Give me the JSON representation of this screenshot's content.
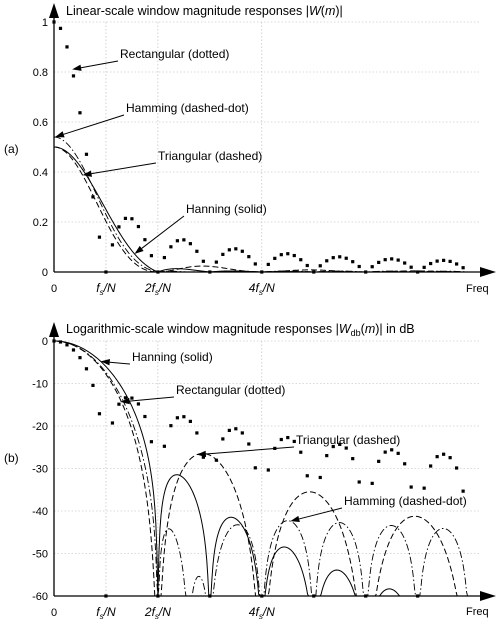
{
  "chart_data": [
    {
      "id": "a",
      "panel_label": "(a)",
      "type": "line",
      "title": "Linear-scale window magnitude responses |W(m)|",
      "xlabel": "Freq",
      "x_ticks": [
        "0",
        "f_s/N",
        "2f_s/N",
        "4f_s/N"
      ],
      "x_tick_values": [
        0,
        1,
        2,
        4
      ],
      "xlim": [
        0,
        8.2
      ],
      "ylim": [
        0,
        1
      ],
      "y_ticks": [
        "0",
        "0.2",
        "0.4",
        "0.6",
        "0.8",
        "1"
      ],
      "y_tick_values": [
        0,
        0.2,
        0.4,
        0.6,
        0.8,
        1
      ],
      "grid": true,
      "series": [
        {
          "name": "Rectangular (dotted)",
          "style": "dotted"
        },
        {
          "name": "Hamming (dashed-dot)",
          "style": "dashdot"
        },
        {
          "name": "Triangular (dashed)",
          "style": "dashed"
        },
        {
          "name": "Hanning (solid)",
          "style": "solid"
        }
      ],
      "annotations": [
        {
          "text": "Rectangular (dotted)",
          "series": 0,
          "at_x": 0.35
        },
        {
          "text": "Hamming (dashed-dot)",
          "series": 1,
          "at_x": 0.02
        },
        {
          "text": "Triangular (dashed)",
          "series": 2,
          "at_x": 0.55
        },
        {
          "text": "Hanning (solid)",
          "series": 3,
          "at_x": 1.55
        }
      ]
    },
    {
      "id": "b",
      "panel_label": "(b)",
      "type": "line",
      "title": "Logarithmic-scale window magnitude responses |W_db(m)| in dB",
      "xlabel": "Freq",
      "x_ticks": [
        "0",
        "f_s/N",
        "2f_s/N",
        "4f_s/N"
      ],
      "x_tick_values": [
        0,
        1,
        2,
        4
      ],
      "xlim": [
        0,
        8.2
      ],
      "ylim": [
        -60,
        0
      ],
      "y_ticks": [
        "0",
        "-10",
        "-20",
        "-30",
        "-40",
        "-50",
        "-60"
      ],
      "y_tick_values": [
        0,
        -10,
        -20,
        -30,
        -40,
        -50,
        -60
      ],
      "grid": true,
      "series": [
        {
          "name": "Hanning (solid)",
          "style": "solid"
        },
        {
          "name": "Rectangular (dotted)",
          "style": "dotted"
        },
        {
          "name": "Triangular (dashed)",
          "style": "dashed"
        },
        {
          "name": "Hamming (dashed-dot)",
          "style": "dashdot"
        }
      ],
      "annotations": [
        {
          "text": "Hanning (solid)",
          "series": 0,
          "at_x": 0.9
        },
        {
          "text": "Rectangular (dotted)",
          "series": 1,
          "at_x": 1.28
        },
        {
          "text": "Triangular (dashed)",
          "series": 2,
          "at_x": 2.75
        },
        {
          "text": "Hamming (dashed-dot)",
          "series": 3,
          "at_x": 4.55
        }
      ]
    }
  ]
}
